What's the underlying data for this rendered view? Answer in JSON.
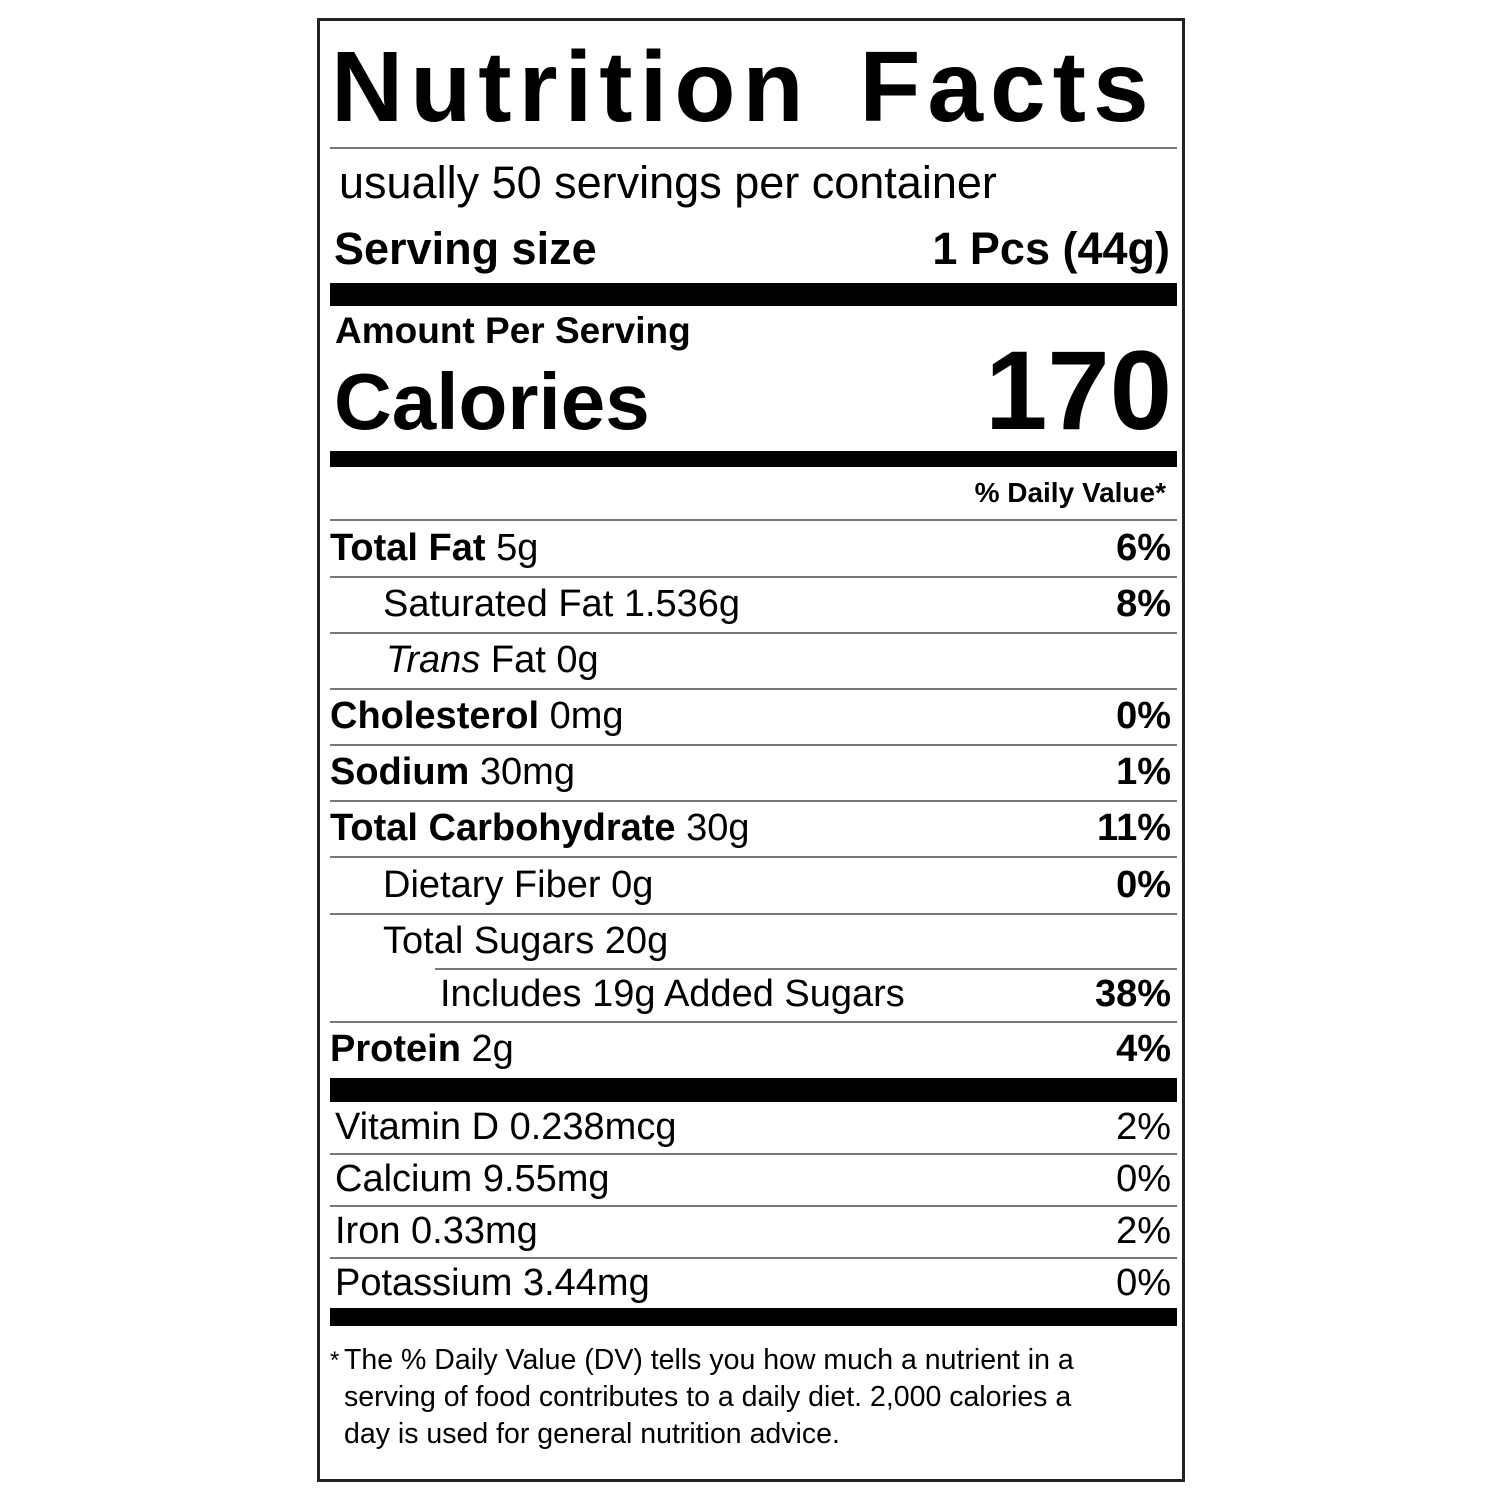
{
  "title": "Nutrition Facts",
  "servings_per_container": "usually 50 servings per container",
  "serving_size": {
    "label": "Serving size",
    "value": "1 Pcs (44g)"
  },
  "amount_per_serving": "Amount Per Serving",
  "calories": {
    "label": "Calories",
    "value": "170"
  },
  "daily_value_header": "% Daily Value*",
  "nutrients": [
    {
      "name": "Total Fat",
      "amount": "5g",
      "dv": "6%"
    },
    {
      "name": "Saturated Fat",
      "amount": "1.536g",
      "dv": "8%"
    },
    {
      "name": "Trans",
      "name_rest": "Fat",
      "amount": "0g",
      "dv": ""
    },
    {
      "name": "Cholesterol",
      "amount": "0mg",
      "dv": "0%"
    },
    {
      "name": "Sodium",
      "amount": "30mg",
      "dv": "1%"
    },
    {
      "name": "Total Carbohydrate",
      "amount": "30g",
      "dv": "11%"
    },
    {
      "name": "Dietary Fiber",
      "amount": "0g",
      "dv": "0%"
    },
    {
      "name": "Total Sugars",
      "amount": "20g",
      "dv": ""
    },
    {
      "name": "Includes 19g Added Sugars",
      "amount": "",
      "dv": "38%"
    },
    {
      "name": "Protein",
      "amount": "2g",
      "dv": "4%"
    }
  ],
  "vitamins": [
    {
      "name": "Vitamin D",
      "amount": "0.238mcg",
      "dv": "2%"
    },
    {
      "name": "Calcium",
      "amount": "9.55mg",
      "dv": "0%"
    },
    {
      "name": "Iron",
      "amount": "0.33mg",
      "dv": "2%"
    },
    {
      "name": "Potassium",
      "amount": "3.44mg",
      "dv": "0%"
    }
  ],
  "footnote": {
    "asterisk": "*",
    "lines": [
      "The % Daily Value (DV) tells you how much a nutrient in a",
      "serving of food contributes to a daily diet. 2,000 calories a",
      "day is used for general nutrition advice."
    ]
  }
}
